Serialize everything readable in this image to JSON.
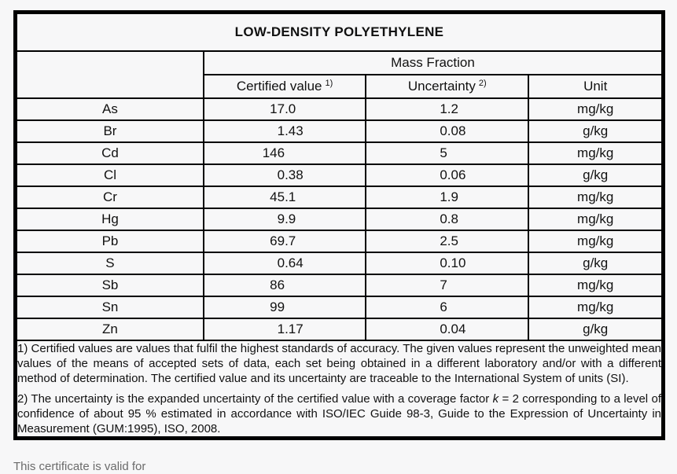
{
  "page": {
    "title": "LOW-DENSITY POLYETHYLENE",
    "bottom_cutoff_text": "This certificate is valid for"
  },
  "colors": {
    "background": "#f7f7f8",
    "border": "#000000",
    "text": "#111111"
  },
  "table": {
    "group_header": "Mass Fraction",
    "columns": {
      "certified": {
        "label": "Certified value",
        "sup": "1)"
      },
      "uncertainty": {
        "label": "Uncertainty",
        "sup": "2)"
      },
      "unit": {
        "label": "Unit"
      }
    },
    "rows": [
      {
        "element": "As",
        "certified_value": "17.0",
        "uncertainty": "1.2",
        "unit": "mg/kg"
      },
      {
        "element": "Br",
        "certified_value": "1.43",
        "uncertainty": "0.08",
        "unit": "g/kg"
      },
      {
        "element": "Cd",
        "certified_value": "146",
        "uncertainty": "5",
        "unit": "mg/kg"
      },
      {
        "element": "Cl",
        "certified_value": "0.38",
        "uncertainty": "0.06",
        "unit": "g/kg"
      },
      {
        "element": "Cr",
        "certified_value": "45.1",
        "uncertainty": "1.9",
        "unit": "mg/kg"
      },
      {
        "element": "Hg",
        "certified_value": "9.9",
        "uncertainty": "0.8",
        "unit": "mg/kg"
      },
      {
        "element": "Pb",
        "certified_value": "69.7",
        "uncertainty": "2.5",
        "unit": "mg/kg"
      },
      {
        "element": "S",
        "certified_value": "0.64",
        "uncertainty": "0.10",
        "unit": "g/kg"
      },
      {
        "element": "Sb",
        "certified_value": "86",
        "uncertainty": "7",
        "unit": "mg/kg"
      },
      {
        "element": "Sn",
        "certified_value": "99",
        "uncertainty": "6",
        "unit": "mg/kg"
      },
      {
        "element": "Zn",
        "certified_value": "1.17",
        "uncertainty": "0.04",
        "unit": "g/kg"
      }
    ],
    "footnotes": {
      "f1": "1) Certified values are values that fulfil the highest standards of accuracy. The given values represent the unweighted mean values of the means of accepted sets of data, each set being obtained in a different laboratory and/or with a different method of determination. The certified value and its uncertainty are traceable to the International System of units (SI).",
      "f2_before_k": "2) The uncertainty is the expanded uncertainty of the certified value with a coverage factor ",
      "f2_k": "k",
      "f2_after_k": " = 2 corresponding to a level of confidence of about 95 % estimated in accordance with ISO/IEC Guide 98-3, Guide to the Expression of Uncertainty in Measurement (GUM:1995), ISO, 2008."
    }
  }
}
